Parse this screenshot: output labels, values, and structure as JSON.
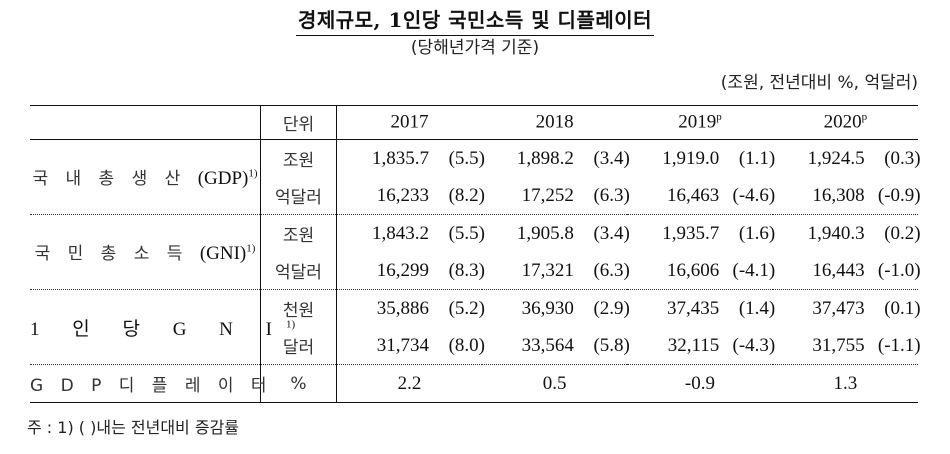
{
  "header": {
    "title": "경제규모, 1인당 국민소득 및 디플레이터",
    "subtitle": "(당해년가격 기준)",
    "unit_note": "(조원, 전년대비 %, 억달러)"
  },
  "table": {
    "columns": {
      "unit": "단위",
      "years": [
        {
          "year": "2017",
          "mark": ""
        },
        {
          "year": "2018",
          "mark": ""
        },
        {
          "year": "2019",
          "mark": "p"
        },
        {
          "year": "2020",
          "mark": "p"
        }
      ]
    },
    "groups": [
      {
        "label": "국 내 총 생 산",
        "label_latin": "(GDP)",
        "footnote_mark": "1)",
        "rows": [
          {
            "unit": "조원",
            "cells": [
              {
                "value": "1,835.7",
                "growth": "(5.5)"
              },
              {
                "value": "1,898.2",
                "growth": "(3.4)"
              },
              {
                "value": "1,919.0",
                "growth": "(1.1)"
              },
              {
                "value": "1,924.5",
                "growth": "(0.3)"
              }
            ]
          },
          {
            "unit": "억달러",
            "cells": [
              {
                "value": "16,233",
                "growth": "(8.2)"
              },
              {
                "value": "17,252",
                "growth": "(6.3)"
              },
              {
                "value": "16,463",
                "growth": "(-4.6)"
              },
              {
                "value": "16,308",
                "growth": "(-0.9)"
              }
            ]
          }
        ]
      },
      {
        "label": "국 민 총 소 득",
        "label_latin": "(GNI)",
        "footnote_mark": "1)",
        "rows": [
          {
            "unit": "조원",
            "cells": [
              {
                "value": "1,843.2",
                "growth": "(5.5)"
              },
              {
                "value": "1,905.8",
                "growth": "(3.4)"
              },
              {
                "value": "1,935.7",
                "growth": "(1.6)"
              },
              {
                "value": "1,940.3",
                "growth": "(0.2)"
              }
            ]
          },
          {
            "unit": "억달러",
            "cells": [
              {
                "value": "16,299",
                "growth": "(8.3)"
              },
              {
                "value": "17,321",
                "growth": "(6.3)"
              },
              {
                "value": "16,606",
                "growth": "(-4.1)"
              },
              {
                "value": "16,443",
                "growth": "(-1.0)"
              }
            ]
          }
        ]
      },
      {
        "label": "1 인 당 G N I",
        "label_latin": "",
        "footnote_mark": "1)",
        "rows": [
          {
            "unit": "천원",
            "cells": [
              {
                "value": "35,886",
                "growth": "(5.2)"
              },
              {
                "value": "36,930",
                "growth": "(2.9)"
              },
              {
                "value": "37,435",
                "growth": "(1.4)"
              },
              {
                "value": "37,473",
                "growth": "(0.1)"
              }
            ]
          },
          {
            "unit": "달러",
            "cells": [
              {
                "value": "31,734",
                "growth": "(8.0)"
              },
              {
                "value": "33,564",
                "growth": "(5.8)"
              },
              {
                "value": "32,115",
                "growth": "(-4.3)"
              },
              {
                "value": "31,755",
                "growth": "(-1.1)"
              }
            ]
          }
        ]
      },
      {
        "label": "G D P 디 플 레 이 터",
        "unit": "%",
        "values": [
          "2.2",
          "0.5",
          "-0.9",
          "1.3"
        ]
      }
    ]
  },
  "footnote": "주 : 1) (   )내는 전년대비 증감률"
}
